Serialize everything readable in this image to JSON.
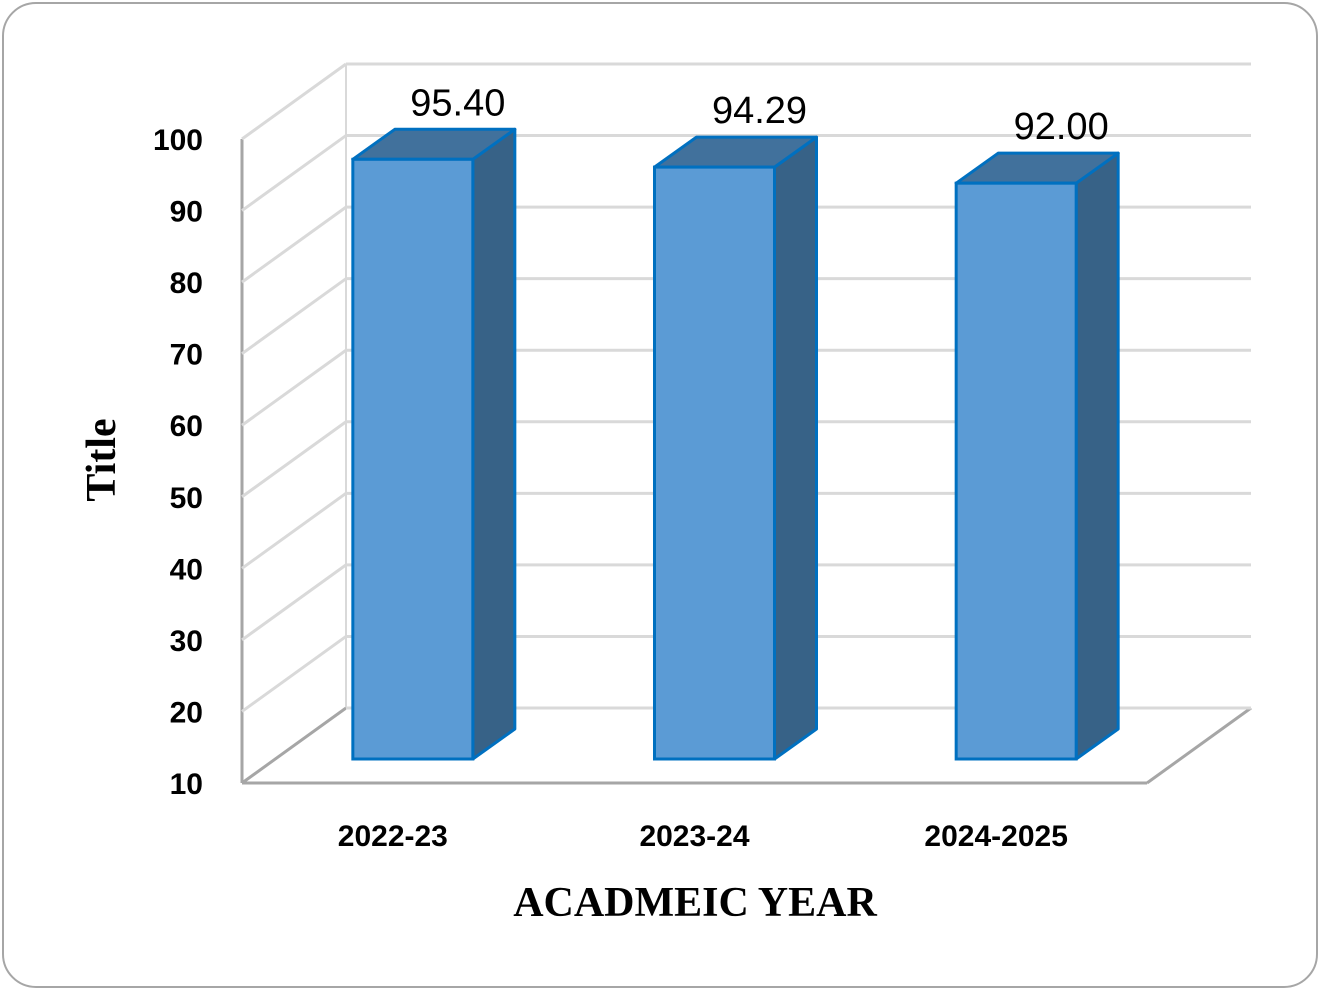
{
  "chart_data": {
    "type": "bar",
    "style": "3d-column",
    "categories": [
      "2022-23",
      "2023-24",
      "2024-2025"
    ],
    "values": [
      95.4,
      94.29,
      92.0
    ],
    "data_labels": [
      "95.40",
      "94.29",
      "92.00"
    ],
    "ylabel": "Title",
    "xlabel": "ACADMEIC YEAR",
    "ylim": [
      10,
      100
    ],
    "yticks": [
      "10",
      "20",
      "30",
      "40",
      "50",
      "60",
      "70",
      "80",
      "90",
      "100"
    ],
    "grid": true,
    "legend": "none",
    "colors": {
      "bar_front": "#5b9bd5",
      "bar_side": "#376287",
      "bar_top": "#41719c",
      "bar_edge": "#0070c0",
      "gridline": "#d9d9d9",
      "axis": "#a6a6a6"
    }
  }
}
